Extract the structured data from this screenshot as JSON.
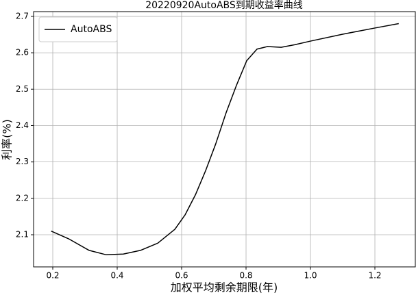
{
  "chart_data": {
    "type": "line",
    "title": "20220920AutoABS到期收益率曲线",
    "x_label": "加权平均剩余期限(年)",
    "y_label": "利率(%)",
    "x": [
      0.195,
      0.249,
      0.313,
      0.366,
      0.419,
      0.472,
      0.526,
      0.579,
      0.611,
      0.643,
      0.674,
      0.706,
      0.738,
      0.77,
      0.802,
      0.834,
      0.866,
      0.909,
      0.951,
      1.0,
      1.1,
      1.2,
      1.274
    ],
    "series": [
      {
        "name": "AutoABS",
        "color": "#000000",
        "values": [
          2.11,
          2.089,
          2.057,
          2.045,
          2.047,
          2.057,
          2.077,
          2.115,
          2.155,
          2.21,
          2.275,
          2.35,
          2.435,
          2.51,
          2.578,
          2.61,
          2.617,
          2.615,
          2.622,
          2.632,
          2.651,
          2.668,
          2.68
        ]
      }
    ],
    "xlim": [
      0.1404,
      1.3255
    ],
    "ylim": [
      2.0117,
      2.713
    ],
    "xticks": [
      0.2,
      0.4,
      0.6,
      0.8,
      {
        "value": 1,
        "label": "1.0"
      },
      1.2
    ],
    "yticks": [
      2.1,
      2.2,
      2.3,
      2.4,
      2.5,
      2.6,
      2.7
    ],
    "grid": true,
    "legend": "upper-left"
  }
}
